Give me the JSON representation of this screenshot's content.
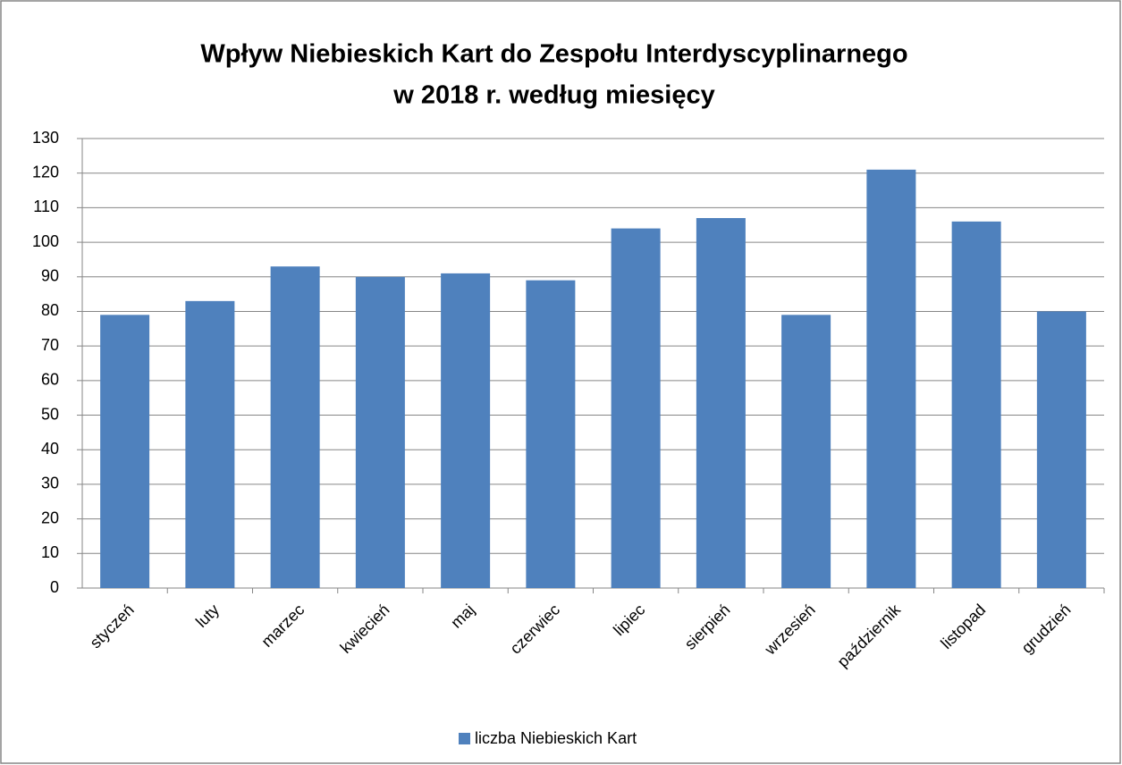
{
  "chart_data": {
    "type": "bar",
    "title": [
      "Wpływ Niebieskich Kart do Zespołu Interdyscyplinarnego",
      "w 2018 r. według miesięcy"
    ],
    "categories": [
      "styczeń",
      "luty",
      "marzec",
      "kwiecień",
      "maj",
      "czerwiec",
      "lipiec",
      "sierpień",
      "wrzesień",
      "październik",
      "listopad",
      "grudzień"
    ],
    "series": [
      {
        "name": "liczba Niebieskich Kart",
        "color": "#4f81bd",
        "values": [
          79,
          83,
          93,
          90,
          91,
          89,
          104,
          107,
          79,
          121,
          106,
          80
        ]
      }
    ],
    "ylim": [
      0,
      130
    ],
    "yticks": [
      0,
      10,
      20,
      30,
      40,
      50,
      60,
      70,
      80,
      90,
      100,
      110,
      120,
      130
    ],
    "grid": true,
    "legend": "bottom"
  }
}
